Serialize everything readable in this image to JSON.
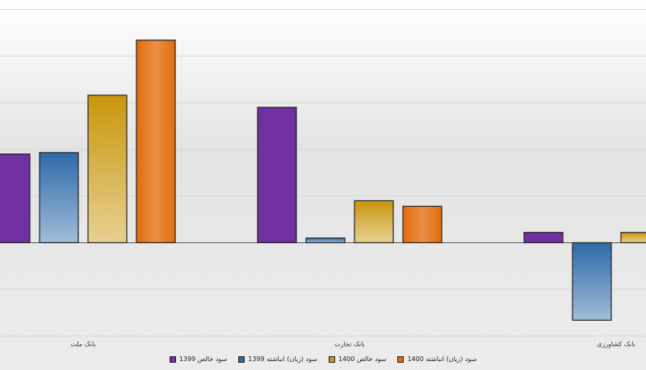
{
  "chart_data": {
    "type": "bar",
    "categories": [
      "بانک ملت",
      "بانک تجارت",
      "بانک کشاورزی"
    ],
    "series": [
      {
        "name": "سود خالص 1399",
        "color": "#7030a0",
        "values": [
          1.9,
          2.9,
          0.22
        ]
      },
      {
        "name": "سود (زیان) انباشته 1399",
        "color": "#2e6aa8",
        "values": [
          1.93,
          0.1,
          -1.66
        ]
      },
      {
        "name": "سود خالص 1400",
        "color": "#c9960c",
        "values": [
          3.16,
          0.9,
          0.22
        ]
      },
      {
        "name": "سود (زیان) انباشته 1400",
        "color": "#e26b0a",
        "values": [
          4.34,
          0.78,
          null
        ]
      }
    ],
    "ylim": [
      -2,
      5.2
    ],
    "yticks": [
      -2,
      -1,
      0,
      1,
      2,
      3,
      4,
      5
    ],
    "grid": true
  }
}
